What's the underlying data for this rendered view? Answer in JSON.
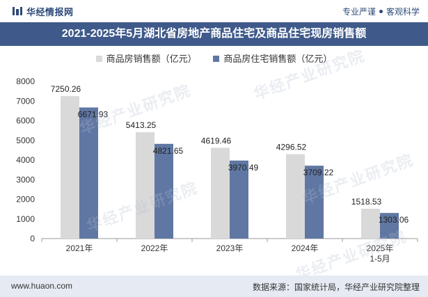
{
  "header": {
    "brand": "华经情报网",
    "slogan_left": "专业严谨",
    "slogan_right": "客观科学"
  },
  "footer": {
    "url": "www.huaon.com",
    "source": "数据来源：国家统计局，华经产业研究院整理"
  },
  "watermark": {
    "text": "华经产业研究院",
    "url": "www.huaon.com"
  },
  "colors": {
    "series1": "#d9d9d9",
    "series2": "#6077a3",
    "titlebar": "#3f5a8a"
  },
  "chart_data": {
    "type": "bar",
    "title": "2021-2025年5月湖北省房地产商品住宅及商品住宅现房销售额",
    "categories": [
      "2021年",
      "2022年",
      "2023年",
      "2024年",
      "2025年 1-5月"
    ],
    "series": [
      {
        "name": "商品房销售额（亿元）",
        "values": [
          7250.26,
          5413.25,
          4619.46,
          4296.52,
          1518.53
        ]
      },
      {
        "name": "商品房住宅销售额（亿元）",
        "values": [
          6671.93,
          4821.65,
          3970.49,
          3709.22,
          1303.06
        ]
      }
    ],
    "value_labels": [
      [
        "7250.26",
        "5413.25",
        "4619.46",
        "4296.52",
        "1518.53"
      ],
      [
        "6671.93",
        "4821.65",
        "3970.49",
        "3709.22",
        "1303.06"
      ]
    ],
    "ylim": [
      0,
      8000
    ],
    "yticks": [
      0,
      1000,
      2000,
      3000,
      4000,
      5000,
      6000,
      7000,
      8000
    ],
    "grid": false,
    "legend": "top-center"
  }
}
